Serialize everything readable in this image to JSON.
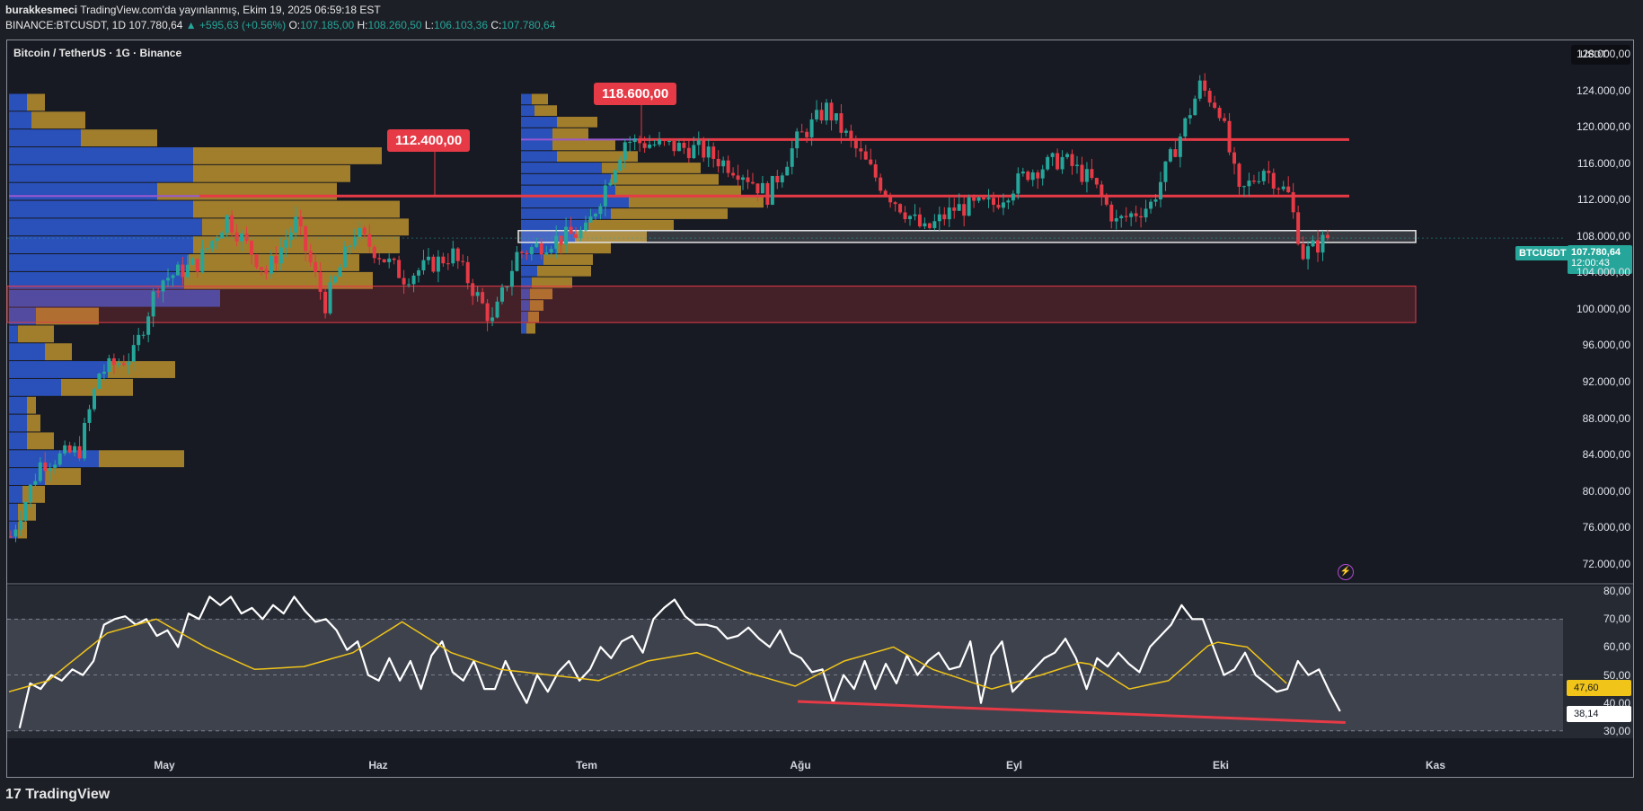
{
  "header": {
    "publisher": "burakkesmeci",
    "published_text": "TradingView.com'da yayınlanmış, Ekim 19, 2025 06:59:18 EST",
    "symbol_line": "BINANCE:BTCUSDT, 1D",
    "last": "107.780,64",
    "change": "+595,63 (+0.56%)",
    "o_label": "O:",
    "o": "107.185,00",
    "h_label": "H:",
    "h": "108.260,50",
    "l_label": "L:",
    "l": "106.103,36",
    "c_label": "C:",
    "c": "107.780,64"
  },
  "chart_title": "Bitcoin / TetherUS · 1G · Binance",
  "currency": "USDT",
  "price_tag": {
    "symbol": "BTCUSDT",
    "price": "107.780,64",
    "countdown": "12:00:43"
  },
  "annotations": {
    "level_a": "112.400,00",
    "level_b": "118.600,00"
  },
  "rsi_labels": {
    "ma": "47,60",
    "rsi": "38,14"
  },
  "brand": "TradingView",
  "colors": {
    "up": "#26a69a",
    "down": "#e63a46",
    "rsi": "#ffffff",
    "rsi_ma": "#f0c419",
    "vp_up": "#2d55c8",
    "vp_down": "#b08a2e"
  },
  "chart_data": [
    {
      "type": "candlestick",
      "title": "Bitcoin / TetherUS · 1G · Binance",
      "ylim": [
        70000,
        129000
      ],
      "y_ticks": [
        "128.000,00",
        "124.000,00",
        "120.000,00",
        "116.000,00",
        "112.000,00",
        "108.000,00",
        "104.000,00",
        "100.000,00",
        "96.000,00",
        "92.000,00",
        "88.000,00",
        "84.000,00",
        "80.000,00",
        "76.000,00",
        "72.000,00"
      ],
      "x_ticks": [
        "May",
        "Haz",
        "Tem",
        "Ağu",
        "Eyl",
        "Eki",
        "Kas"
      ],
      "anchors": [
        [
          0,
          75000
        ],
        [
          6,
          83000
        ],
        [
          14,
          84500
        ],
        [
          18,
          93000
        ],
        [
          25,
          95000
        ],
        [
          30,
          103000
        ],
        [
          38,
          105000
        ],
        [
          44,
          110000
        ],
        [
          52,
          104000
        ],
        [
          58,
          109500
        ],
        [
          64,
          100500
        ],
        [
          70,
          108500
        ],
        [
          80,
          103500
        ],
        [
          90,
          106000
        ],
        [
          98,
          98500
        ],
        [
          103,
          106000
        ],
        [
          110,
          107500
        ],
        [
          117,
          108500
        ],
        [
          125,
          118500
        ],
        [
          132,
          118000
        ],
        [
          140,
          117500
        ],
        [
          149,
          115000
        ],
        [
          154,
          112500
        ],
        [
          160,
          118500
        ],
        [
          166,
          122000
        ],
        [
          170,
          119000
        ],
        [
          178,
          113000
        ],
        [
          186,
          108500
        ],
        [
          192,
          111000
        ],
        [
          200,
          111500
        ],
        [
          207,
          115000
        ],
        [
          214,
          116500
        ],
        [
          220,
          114000
        ],
        [
          225,
          109500
        ],
        [
          232,
          111500
        ],
        [
          238,
          119000
        ],
        [
          242,
          124500
        ],
        [
          246,
          122000
        ],
        [
          250,
          112500
        ],
        [
          255,
          115500
        ],
        [
          260,
          112500
        ],
        [
          263,
          106000
        ],
        [
          268,
          107780
        ]
      ],
      "horizontal_levels": [
        118600,
        112400
      ],
      "zones": [
        {
          "from": 98500,
          "to": 102500,
          "color": "#e63a46"
        },
        {
          "from": 107300,
          "to": 108600,
          "color": "#ffffff"
        }
      ],
      "last_price": 107780.64
    },
    {
      "type": "line",
      "title": "RSI",
      "ylim": [
        28,
        82
      ],
      "y_ticks": [
        "80,00",
        "70,00",
        "60,00",
        "50,00",
        "40,00",
        "30,00"
      ],
      "bands": [
        30,
        50,
        70
      ],
      "series": [
        {
          "values": [
            31,
            47,
            45,
            50,
            48,
            52,
            50,
            55,
            68,
            70,
            71,
            68,
            70,
            64,
            66,
            60,
            72,
            70,
            78,
            75,
            78,
            72,
            74,
            70,
            75,
            72,
            78,
            73,
            69,
            70,
            66,
            59,
            62,
            50,
            48,
            56,
            48,
            55,
            45,
            57,
            62,
            51,
            48,
            55,
            45,
            45,
            55,
            47,
            40,
            50,
            44,
            51,
            55,
            48,
            52,
            60,
            56,
            62,
            64,
            58,
            70,
            74,
            77,
            71,
            68,
            68,
            67,
            63,
            64,
            67,
            63,
            60,
            66,
            58,
            56,
            51,
            52,
            40,
            50,
            45,
            55,
            45,
            54,
            47,
            57,
            50,
            55,
            58,
            52,
            53,
            62,
            40,
            57,
            62,
            44,
            48,
            52,
            56,
            58,
            63,
            56,
            45,
            56,
            53,
            58,
            54,
            51,
            60,
            64,
            68,
            75,
            70,
            70,
            60,
            50,
            52,
            58,
            50,
            47,
            44,
            45,
            55,
            50,
            52,
            44,
            37
          ],
          "x": [
            1,
            2,
            3,
            4,
            5,
            6,
            7,
            8,
            9,
            10,
            11,
            12,
            13,
            14,
            15,
            16,
            17,
            18,
            19,
            20,
            21,
            22,
            23,
            24,
            25,
            26,
            27,
            28,
            29,
            30,
            31,
            32,
            33,
            34,
            35,
            36,
            37,
            38,
            39,
            40,
            41,
            42,
            43,
            44,
            45,
            46,
            47,
            48,
            49,
            50,
            51,
            52,
            53,
            54,
            55,
            56,
            57,
            58,
            59,
            60,
            61,
            62,
            63,
            64,
            65,
            66,
            67,
            68,
            69,
            70,
            71,
            72,
            73,
            74,
            75,
            76,
            77,
            78,
            79,
            80,
            81,
            82,
            83,
            84,
            85,
            86,
            87,
            88,
            89,
            90,
            91,
            92,
            93,
            94,
            95,
            96,
            97,
            98,
            99,
            100,
            101,
            102,
            103,
            104,
            105,
            106,
            107,
            108,
            109,
            110,
            111,
            112,
            113,
            114,
            115,
            116,
            117,
            118,
            119,
            120,
            121,
            122,
            123,
            124,
            125,
            126
          ]
        },
        {
          "anchors": [
            [
              0,
              44
            ],
            [
              8,
              48
            ],
            [
              20,
              65
            ],
            [
              30,
              70
            ],
            [
              40,
              60
            ],
            [
              50,
              52
            ],
            [
              60,
              53
            ],
            [
              70,
              58
            ],
            [
              80,
              69
            ],
            [
              90,
              58
            ],
            [
              100,
              52
            ],
            [
              110,
              50
            ],
            [
              120,
              48
            ],
            [
              130,
              55
            ],
            [
              140,
              58
            ],
            [
              150,
              51
            ],
            [
              160,
              46
            ],
            [
              170,
              55
            ],
            [
              180,
              60
            ],
            [
              188,
              52
            ],
            [
              200,
              45
            ],
            [
              210,
              50
            ],
            [
              219,
              55
            ],
            [
              228,
              45
            ],
            [
              236,
              48
            ],
            [
              245,
              62
            ],
            [
              252,
              60
            ],
            [
              260,
              47
            ]
          ]
        }
      ],
      "divergence_line": {
        "from": [
          97,
          40.5
        ],
        "to": [
          272,
          33
        ]
      }
    }
  ]
}
